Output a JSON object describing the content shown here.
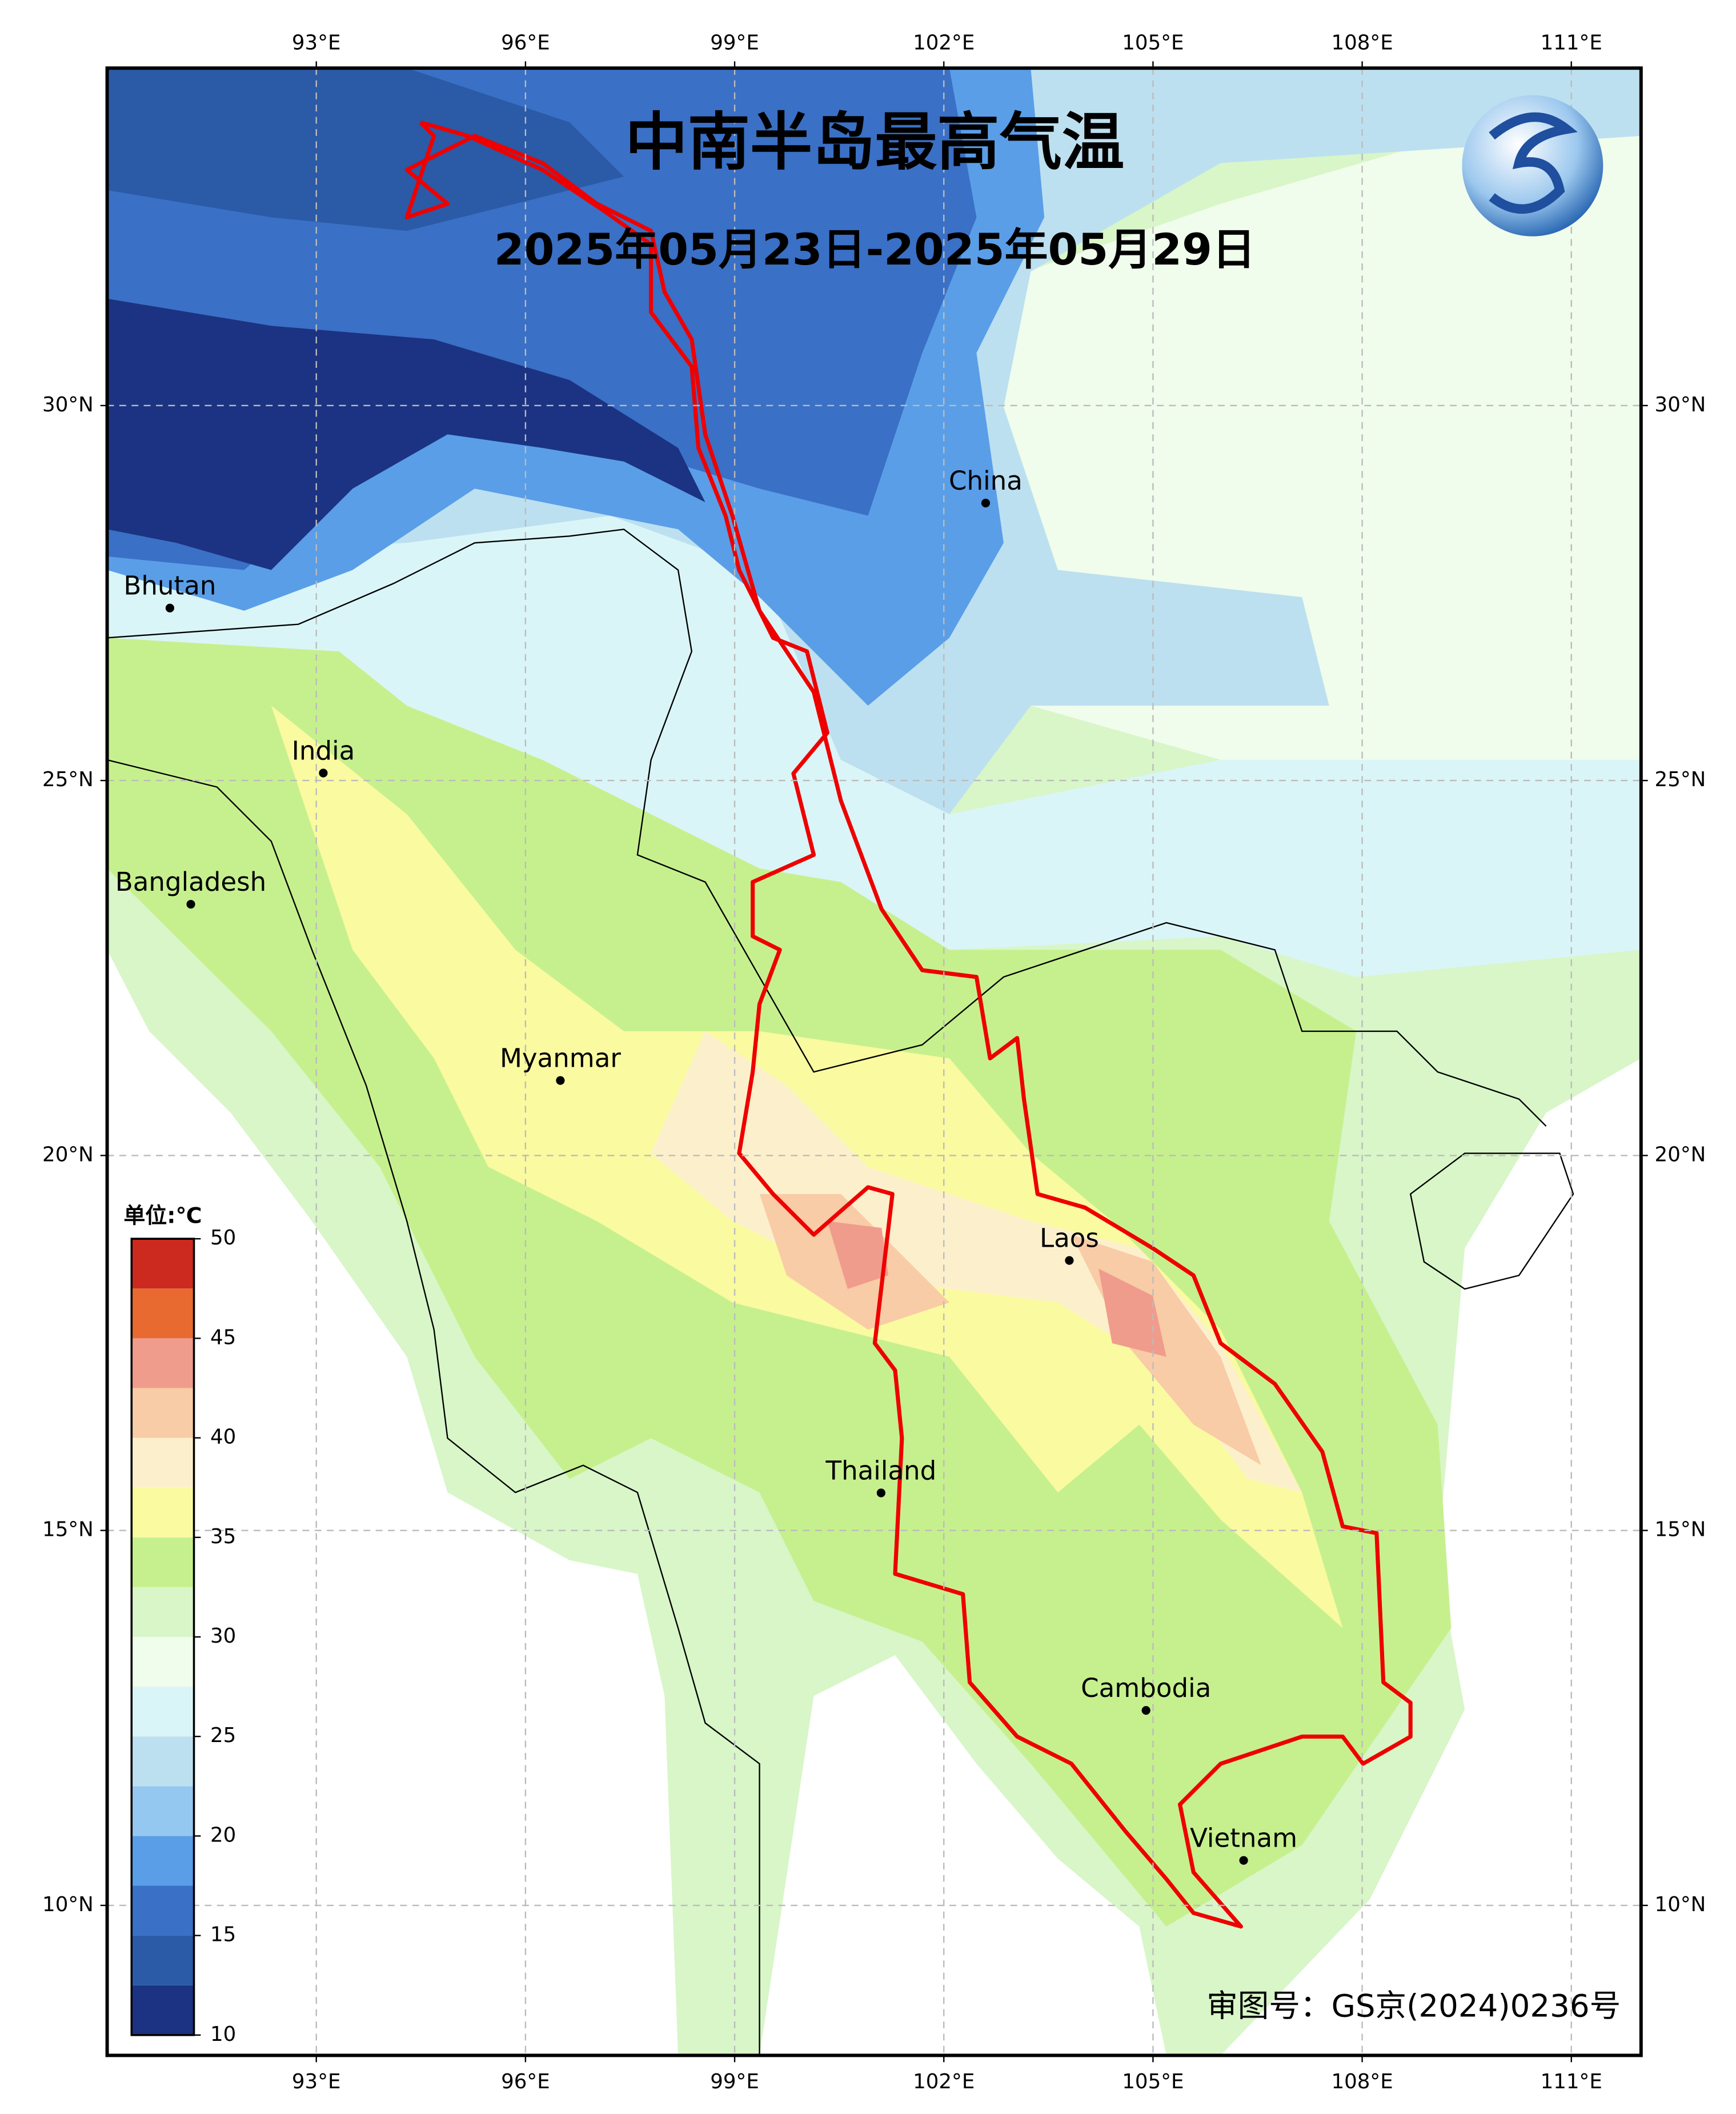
{
  "chart_data": {
    "type": "map",
    "title": "中南半岛最高气温",
    "subtitle": "2025年05月23日-2025年05月29日",
    "note": "审图号：GS京(2024)0236号",
    "colorbar_title": "单位:℃",
    "xlim": [
      90,
      112
    ],
    "ylim": [
      8,
      34.5
    ],
    "xticks": [
      {
        "value": 93,
        "label": "93°E"
      },
      {
        "value": 96,
        "label": "96°E"
      },
      {
        "value": 99,
        "label": "99°E"
      },
      {
        "value": 102,
        "label": "102°E"
      },
      {
        "value": 105,
        "label": "105°E"
      },
      {
        "value": 108,
        "label": "108°E"
      },
      {
        "value": 111,
        "label": "111°E"
      }
    ],
    "yticks": [
      {
        "value": 10,
        "label": "10°N"
      },
      {
        "value": 15,
        "label": "15°N"
      },
      {
        "value": 20,
        "label": "20°N"
      },
      {
        "value": 25,
        "label": "25°N"
      },
      {
        "value": 30,
        "label": "30°N"
      }
    ],
    "grid": true,
    "places": [
      {
        "name": "Bhutan",
        "lon": 90.9,
        "lat": 27.3
      },
      {
        "name": "China",
        "lon": 102.6,
        "lat": 28.7
      },
      {
        "name": "India",
        "lon": 93.1,
        "lat": 25.1
      },
      {
        "name": "Bangladesh",
        "lon": 91.2,
        "lat": 23.35
      },
      {
        "name": "Myanmar",
        "lon": 96.5,
        "lat": 21.0
      },
      {
        "name": "Laos",
        "lon": 103.8,
        "lat": 18.6
      },
      {
        "name": "Thailand",
        "lon": 101.1,
        "lat": 15.5
      },
      {
        "name": "Cambodia",
        "lon": 104.9,
        "lat": 12.6
      },
      {
        "name": "Vietnam",
        "lon": 106.3,
        "lat": 10.6
      }
    ],
    "colorbar": {
      "lim": [
        10,
        50
      ],
      "ticks": [
        10,
        15,
        20,
        25,
        30,
        35,
        40,
        45,
        50
      ],
      "levels": [
        10,
        12.5,
        15,
        17.5,
        20,
        22.5,
        25,
        27.5,
        30,
        32.5,
        35,
        37.5,
        40,
        42.5,
        45,
        47.5,
        50
      ],
      "colors": [
        "#1b3382",
        "#2b5aa6",
        "#3a70c6",
        "#5a9ee8",
        "#94c8f0",
        "#bde0f0",
        "#daf5f8",
        "#f0fcec",
        "#d8f6c8",
        "#c6f08e",
        "#fafaa0",
        "#fcf0cc",
        "#f8cca6",
        "#f09c8c",
        "#e86a30",
        "#cc2a1e"
      ]
    }
  }
}
